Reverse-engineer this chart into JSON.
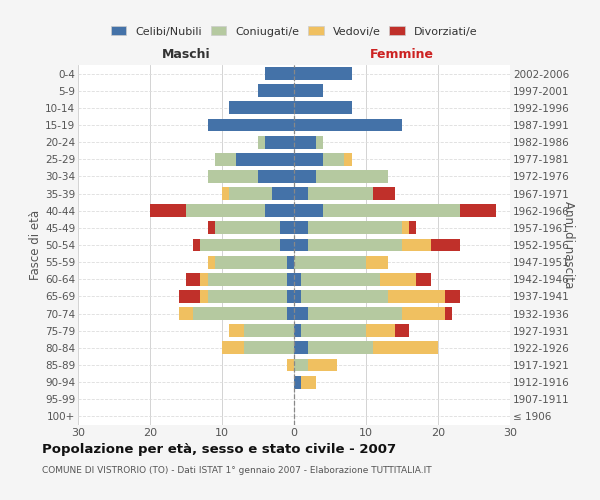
{
  "age_groups": [
    "100+",
    "95-99",
    "90-94",
    "85-89",
    "80-84",
    "75-79",
    "70-74",
    "65-69",
    "60-64",
    "55-59",
    "50-54",
    "45-49",
    "40-44",
    "35-39",
    "30-34",
    "25-29",
    "20-24",
    "15-19",
    "10-14",
    "5-9",
    "0-4"
  ],
  "birth_years": [
    "≤ 1906",
    "1907-1911",
    "1912-1916",
    "1917-1921",
    "1922-1926",
    "1927-1931",
    "1932-1936",
    "1937-1941",
    "1942-1946",
    "1947-1951",
    "1952-1956",
    "1957-1961",
    "1962-1966",
    "1967-1971",
    "1972-1976",
    "1977-1981",
    "1982-1986",
    "1987-1991",
    "1992-1996",
    "1997-2001",
    "2002-2006"
  ],
  "male": {
    "celibi": [
      0,
      0,
      0,
      0,
      0,
      0,
      1,
      1,
      1,
      1,
      2,
      2,
      4,
      3,
      5,
      8,
      4,
      12,
      9,
      5,
      4
    ],
    "coniugati": [
      0,
      0,
      0,
      0,
      7,
      7,
      13,
      11,
      11,
      10,
      11,
      9,
      11,
      6,
      7,
      3,
      1,
      0,
      0,
      0,
      0
    ],
    "vedovi": [
      0,
      0,
      0,
      1,
      3,
      2,
      2,
      1,
      1,
      1,
      0,
      0,
      0,
      1,
      0,
      0,
      0,
      0,
      0,
      0,
      0
    ],
    "divorziati": [
      0,
      0,
      0,
      0,
      0,
      0,
      0,
      3,
      2,
      0,
      1,
      1,
      5,
      0,
      0,
      0,
      0,
      0,
      0,
      0,
      0
    ]
  },
  "female": {
    "nubili": [
      0,
      0,
      1,
      0,
      2,
      1,
      2,
      1,
      1,
      0,
      2,
      2,
      4,
      2,
      3,
      4,
      3,
      15,
      8,
      4,
      8
    ],
    "coniugate": [
      0,
      0,
      0,
      2,
      9,
      9,
      13,
      12,
      11,
      10,
      13,
      13,
      19,
      9,
      10,
      3,
      1,
      0,
      0,
      0,
      0
    ],
    "vedove": [
      0,
      0,
      2,
      4,
      9,
      4,
      6,
      8,
      5,
      3,
      4,
      1,
      0,
      0,
      0,
      1,
      0,
      0,
      0,
      0,
      0
    ],
    "divorziate": [
      0,
      0,
      0,
      0,
      0,
      2,
      1,
      2,
      2,
      0,
      4,
      1,
      5,
      3,
      0,
      0,
      0,
      0,
      0,
      0,
      0
    ]
  },
  "colors": {
    "celibi": "#4472a8",
    "coniugati": "#b5c9a0",
    "vedovi": "#f0c060",
    "divorziati": "#c0302a"
  },
  "xlim": 30,
  "title": "Popolazione per età, sesso e stato civile - 2007",
  "subtitle": "COMUNE DI VISTRORIO (TO) - Dati ISTAT 1° gennaio 2007 - Elaborazione TUTTITALIA.IT",
  "ylabel_left": "Fasce di età",
  "ylabel_right": "Anni di nascita",
  "xlabel_left": "Maschi",
  "xlabel_right": "Femmine",
  "legend_labels": [
    "Celibi/Nubili",
    "Coniugati/e",
    "Vedovi/e",
    "Divorziati/e"
  ],
  "bg_color": "#f5f5f5",
  "plot_bg_color": "#ffffff"
}
